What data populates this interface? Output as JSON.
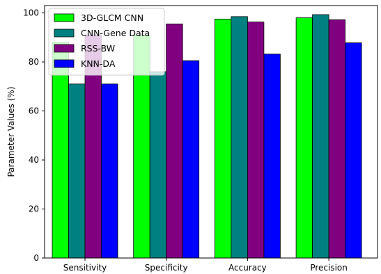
{
  "chart_data": {
    "type": "bar",
    "title": "",
    "xlabel": "",
    "ylabel": "Parameter Values (%)",
    "categories": [
      "Sensitivity",
      "Specificity",
      "Accuracy",
      "Precision"
    ],
    "series": [
      {
        "name": "3D-GLCM CNN",
        "color": "#00ff00",
        "values": [
          88.0,
          91.0,
          97.5,
          98.0
        ]
      },
      {
        "name": "CNN-Gene Data",
        "color": "#008080",
        "values": [
          71.0,
          76.0,
          98.5,
          99.3
        ]
      },
      {
        "name": "RSS-BW",
        "color": "#800080",
        "values": [
          91.0,
          95.5,
          96.3,
          97.2
        ]
      },
      {
        "name": "KNN-DA",
        "color": "#0000ff",
        "values": [
          71.0,
          80.5,
          83.2,
          87.8
        ]
      }
    ],
    "ylim": [
      0,
      103
    ],
    "yticks": [
      0,
      20,
      40,
      60,
      80,
      100
    ],
    "grid": false,
    "legend_position": "top-left"
  }
}
